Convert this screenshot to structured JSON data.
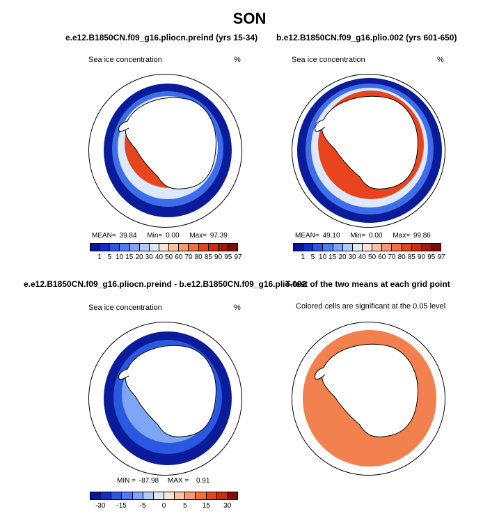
{
  "title": "SON",
  "panels": [
    {
      "title": "e.e12.B1850CN.f09_g16.pliocn.preind (yrs 15-34)",
      "left_label": "Sea ice concentration",
      "right_label": "%",
      "stats": {
        "mean_label": "MEAN=",
        "mean": "39.84",
        "min_label": "Min=",
        "min": "0.00",
        "max_label": "Max=",
        "max": "97.39"
      },
      "colorbar": "sic"
    },
    {
      "title": "b.e12.B1850CN.f09_g16.plio.002 (yrs 601-650)",
      "left_label": "Sea ice concentration",
      "right_label": "%",
      "stats": {
        "mean_label": "MEAN=",
        "mean": "49.10",
        "min_label": "Min=",
        "min": "0.00",
        "max_label": "Max=",
        "max": "99.86"
      },
      "colorbar": "sic"
    },
    {
      "title": "e.e12.B1850CN.f09_g16.pliocn.preind - b.e12.B1850CN.f09_g16.plio.002",
      "left_label": "Sea ice concentration",
      "right_label": "%",
      "stats": {
        "min_label": "MIN =",
        "min": "-87.98",
        "max_label": "MAX =",
        "max": "0.91"
      },
      "colorbar": "diff"
    },
    {
      "title": "T-test of the two means at each grid point",
      "left_label": "Colored cells are significant at the 0.05 level",
      "right_label": ""
    }
  ],
  "colorbars": {
    "sic": {
      "colors": [
        "#06189a",
        "#0c2fc6",
        "#2a58e0",
        "#4a7ff0",
        "#7fa6f6",
        "#b0cbfa",
        "#dce9fd",
        "#fde4d4",
        "#fbc2a2",
        "#f89a70",
        "#f26f42",
        "#e2461f",
        "#c72d10",
        "#a41807",
        "#7e0c03"
      ],
      "tick_labels": [
        "1",
        "5",
        "10",
        "15",
        "20",
        "30",
        "40",
        "50",
        "60",
        "70",
        "80",
        "85",
        "90",
        "95",
        "97"
      ]
    },
    "diff": {
      "colors": [
        "#06189a",
        "#0c2fc6",
        "#2a58e0",
        "#4a7ff0",
        "#7fa6f6",
        "#b0cbfa",
        "#dce9fd",
        "#fde4d4",
        "#fbc2a2",
        "#f89a70",
        "#f26f42",
        "#e2461f",
        "#c72d10",
        "#7e0c03"
      ],
      "tick_labels": [
        "-30",
        "-15",
        "-5",
        "0",
        "5",
        "15",
        "30"
      ]
    }
  },
  "colors": {
    "ice_dark": "#0a1c9a",
    "ice_red": "#e8451e",
    "ttest": "#f2814f",
    "land": "#ffffff"
  }
}
